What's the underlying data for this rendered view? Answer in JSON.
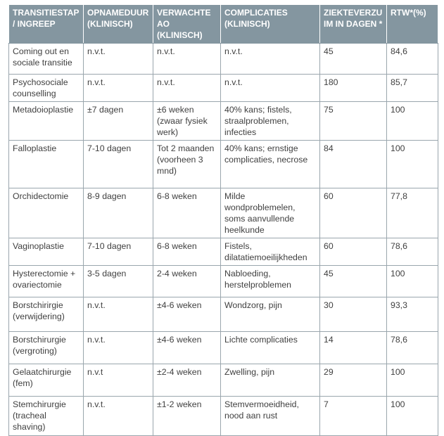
{
  "table": {
    "header": [
      "TRANSITIESTAP / INGREEP",
      "OPNAMEDUUR (KLINISCH)",
      "VERWACHTE AO (KLINISCH)",
      "COMPLICATIES (KLINISCH)",
      "ZIEKTEVERZUIM IN DAGEN *",
      "RTW*(%)"
    ],
    "rows": [
      [
        "Coming out en sociale transitie",
        "n.v.t.",
        "n.v.t.",
        "n.v.t.",
        "45",
        "84,6"
      ],
      [
        "Psychosociale counselling",
        "n.v.t.",
        "n.v.t.",
        "n.v.t.",
        "180",
        "85,7"
      ],
      [
        "Metadoioplastie",
        "±7 dagen",
        "±6 weken (zwaar fysiek werk)",
        "40% kans; fistels, straalproblemen, infecties",
        "75",
        "100"
      ],
      [
        "Falloplastie",
        "7-10 dagen",
        "Tot 2 maanden (voorheen 3 mnd)",
        "40% kans; ernstige complicaties, necrose",
        "84",
        "100"
      ],
      [
        "Orchidectomie",
        "8-9 dagen",
        "6-8 weken",
        "Milde wondproblemelen, soms aanvullende heelkunde",
        "60",
        "77,8"
      ],
      [
        "Vaginoplastie",
        "7-10 dagen",
        "6-8 weken",
        "Fistels, dilatatiemoeilijkheden",
        "60",
        "78,6"
      ],
      [
        "Hysterectomie + ovariectomie",
        "3-5 dagen",
        "2-4 weken",
        "Nabloeding, herstelproblemen",
        "45",
        "100"
      ],
      [
        "Borstchirirgie (verwijdering)",
        "n.v.t.",
        "±4-6 weken",
        "Wondzorg, pijn",
        "30",
        "93,3"
      ],
      [
        "Borstchirurgie (vergroting)",
        "n.v.t.",
        "±4-6 weken",
        "Lichte complicaties",
        "14",
        "78,6"
      ],
      [
        "Gelaatchirurgie (fem)",
        "n.v.t",
        "±2-4 weken",
        "Zwelling, pijn",
        "29",
        "100"
      ],
      [
        "Stemchirurgie (tracheal shaving)",
        "n.v.t.",
        "±1-2 weken",
        "Stemvermoeidheid, nood aan rust",
        "7",
        "100"
      ]
    ]
  }
}
